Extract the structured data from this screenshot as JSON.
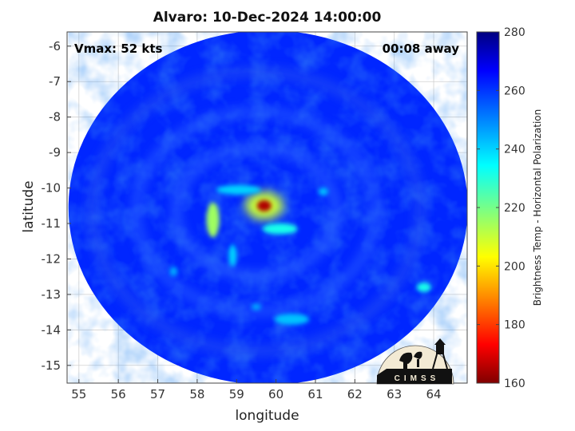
{
  "chart_data": {
    "type": "heatmap",
    "title": "Alvaro: 10-Dec-2024 14:00:00",
    "xlabel": "longitude",
    "ylabel": "latitude",
    "annotations": {
      "vmax": "Vmax: 52 kts",
      "time_offset": "00:08 away"
    },
    "xlim": [
      54.7,
      64.85
    ],
    "ylim": [
      -15.5,
      -5.6
    ],
    "x_ticks": [
      55,
      56,
      57,
      58,
      59,
      60,
      61,
      62,
      63,
      64
    ],
    "y_ticks": [
      -6,
      -7,
      -8,
      -9,
      -10,
      -11,
      -12,
      -13,
      -14,
      -15
    ],
    "grid": true,
    "colorbar": {
      "label": "Brightness Temp - Horizontal Polarization",
      "range": [
        160,
        280
      ],
      "ticks": [
        280,
        260,
        240,
        220,
        200,
        180,
        160
      ],
      "colormap": "jet"
    },
    "swath": {
      "center_lon": 59.8,
      "center_lat": -10.55,
      "background_value": 262
    },
    "features": [
      {
        "name": "eye",
        "lon": 59.7,
        "lat": -10.5,
        "value": 165
      },
      {
        "name": "inner core",
        "lon": 59.7,
        "lat": -10.5,
        "value": 210
      },
      {
        "name": "west band",
        "lon": 58.4,
        "lat": -10.9,
        "value": 215
      },
      {
        "name": "northwest arc",
        "lon": 59.05,
        "lat": -10.05,
        "value": 240
      },
      {
        "name": "southeast arc",
        "lon": 60.1,
        "lat": -11.15,
        "value": 232
      },
      {
        "name": "southern fragment",
        "lon": 58.9,
        "lat": -11.9,
        "value": 240
      },
      {
        "name": "east cell",
        "lon": 61.2,
        "lat": -10.1,
        "value": 242
      },
      {
        "name": "far east cell",
        "lon": 63.75,
        "lat": -12.8,
        "value": 232
      },
      {
        "name": "south band",
        "lon": 60.4,
        "lat": -13.7,
        "value": 242
      },
      {
        "name": "south cell",
        "lon": 59.5,
        "lat": -13.35,
        "value": 245
      },
      {
        "name": "southwest cell",
        "lon": 57.4,
        "lat": -12.35,
        "value": 245
      }
    ],
    "colors": {
      "background": "#1f40e6",
      "grid": "#d0d0d0"
    }
  },
  "logo": {
    "text": "CIMSS"
  }
}
